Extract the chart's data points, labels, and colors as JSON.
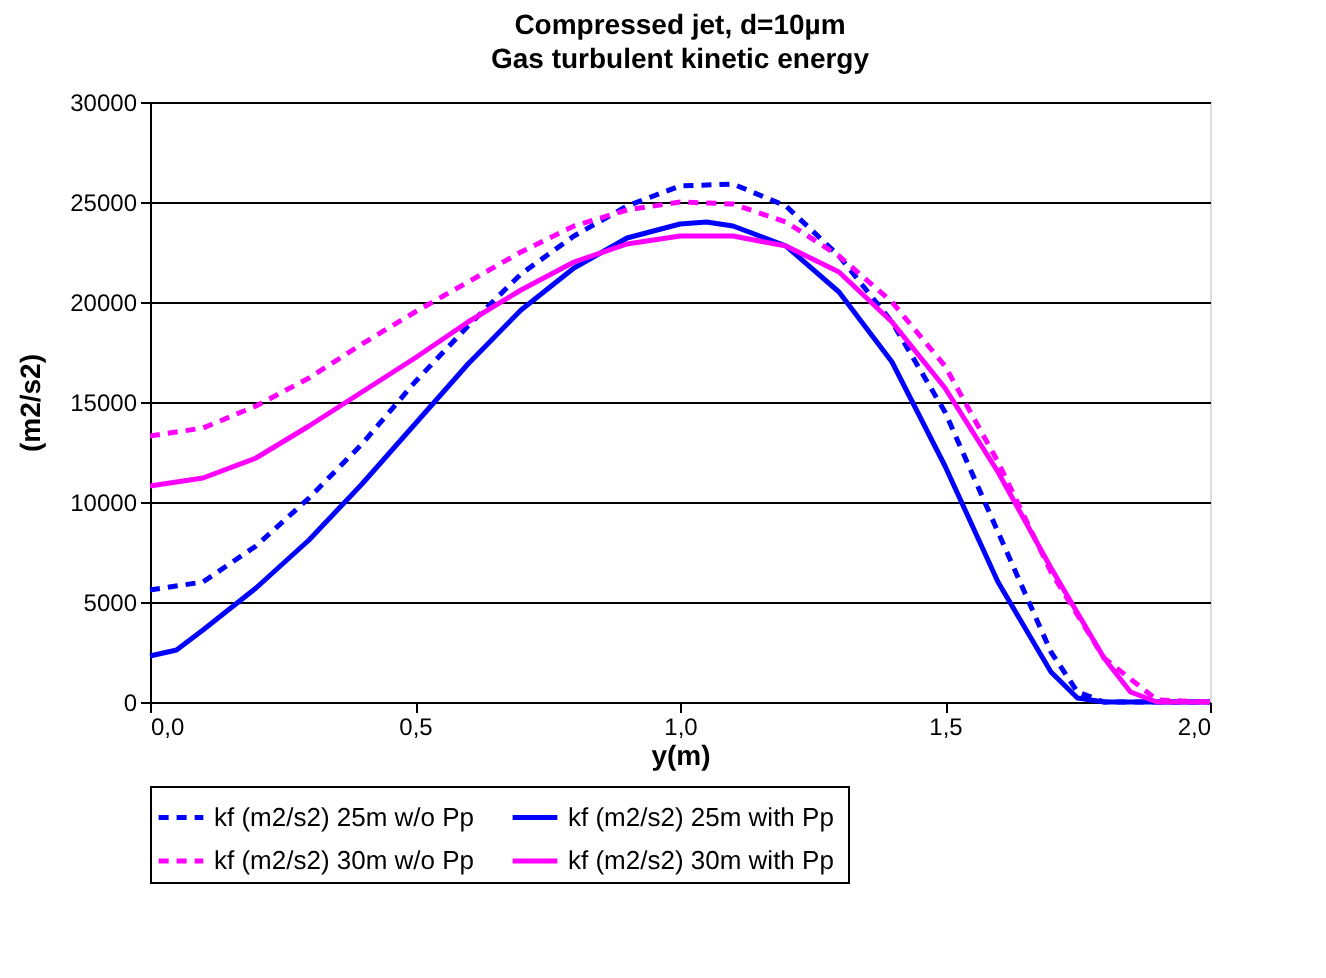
{
  "chart_data": {
    "type": "line",
    "title": "Compressed jet, d=10µm",
    "subtitle": "Gas turbulent kinetic energy",
    "xlabel": "y(m)",
    "ylabel": "(m2/s2)",
    "xlim": [
      0,
      2
    ],
    "xticks": [
      {
        "value": 0,
        "label": "0,0"
      },
      {
        "value": 0.5,
        "label": "0,5"
      },
      {
        "value": 1,
        "label": "1,0"
      },
      {
        "value": 1.5,
        "label": "1,5"
      },
      {
        "value": 2,
        "label": "2,0"
      }
    ],
    "ylim": [
      0,
      30000
    ],
    "yticks": [
      0,
      5000,
      10000,
      15000,
      20000,
      25000,
      30000
    ],
    "grid": "y",
    "legend": "bottom",
    "marker": "none",
    "series": [
      {
        "name": "kf (m2/s2) 25m w/o  Pp",
        "color": "#0000ff",
        "line_style": "dashed",
        "x": [
          0,
          0.1,
          0.2,
          0.3,
          0.4,
          0.5,
          0.6,
          0.7,
          0.8,
          0.9,
          1.0,
          1.1,
          1.2,
          1.3,
          1.4,
          1.5,
          1.6,
          1.7,
          1.75,
          1.8,
          2.0
        ],
        "values": [
          5600,
          6000,
          7800,
          10200,
          12900,
          16000,
          18800,
          21400,
          23300,
          24800,
          25800,
          25900,
          24800,
          22300,
          19000,
          14500,
          8500,
          2500,
          500,
          0,
          0
        ]
      },
      {
        "name": "kf (m2/s2) 25m with  Pp",
        "color": "#0000ff",
        "line_style": "solid",
        "x": [
          0,
          0.05,
          0.1,
          0.2,
          0.3,
          0.4,
          0.5,
          0.6,
          0.7,
          0.8,
          0.9,
          1.0,
          1.05,
          1.1,
          1.2,
          1.3,
          1.4,
          1.5,
          1.6,
          1.7,
          1.75,
          1.8,
          2.0
        ],
        "values": [
          2300,
          2600,
          3600,
          5700,
          8100,
          10900,
          13900,
          16900,
          19600,
          21700,
          23200,
          23900,
          24000,
          23800,
          22800,
          20500,
          17000,
          11800,
          6000,
          1500,
          200,
          0,
          0
        ]
      },
      {
        "name": "kf (m2/s2) 30m w/o  Pp",
        "color": "#ff00ff",
        "line_style": "dashed",
        "x": [
          0,
          0.1,
          0.2,
          0.3,
          0.4,
          0.5,
          0.6,
          0.7,
          0.8,
          0.9,
          1.0,
          1.1,
          1.2,
          1.3,
          1.4,
          1.5,
          1.6,
          1.7,
          1.8,
          1.9,
          2.0
        ],
        "values": [
          13300,
          13700,
          14800,
          16200,
          17900,
          19500,
          21000,
          22500,
          23800,
          24600,
          25000,
          24900,
          24000,
          22300,
          20000,
          16800,
          12000,
          6500,
          2200,
          100,
          0
        ]
      },
      {
        "name": "kf (m2/s2) 30m with  Pp",
        "color": "#ff00ff",
        "line_style": "solid",
        "x": [
          0,
          0.1,
          0.2,
          0.3,
          0.4,
          0.5,
          0.6,
          0.7,
          0.8,
          0.9,
          1.0,
          1.1,
          1.2,
          1.3,
          1.4,
          1.5,
          1.6,
          1.7,
          1.8,
          1.85,
          1.9,
          2.0
        ],
        "values": [
          10800,
          11200,
          12200,
          13800,
          15500,
          17200,
          19000,
          20600,
          22000,
          22900,
          23300,
          23300,
          22800,
          21500,
          19000,
          15700,
          11500,
          6700,
          2200,
          500,
          0,
          0
        ]
      }
    ]
  }
}
